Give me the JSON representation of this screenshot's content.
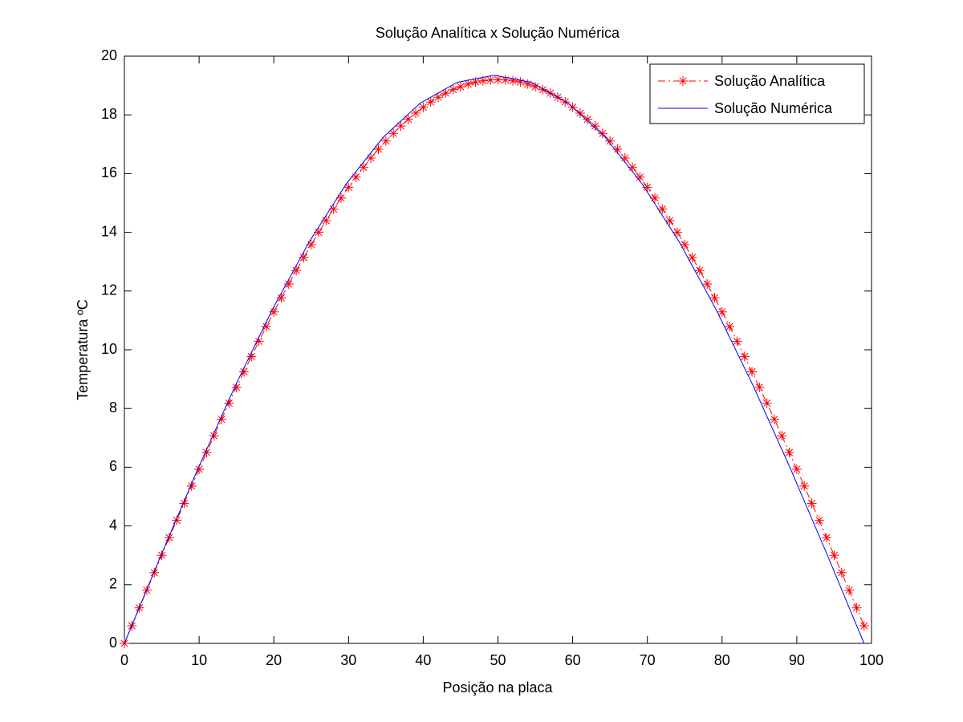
{
  "chart_data": {
    "type": "line",
    "title": "Solução Analítica x Solução Numérica",
    "xlabel": "Posição na placa",
    "ylabel": "Temperatura ºC",
    "xlim": [
      0,
      100
    ],
    "ylim": [
      0,
      20
    ],
    "xticks": [
      0,
      10,
      20,
      30,
      40,
      50,
      60,
      70,
      80,
      90,
      100
    ],
    "yticks": [
      0,
      2,
      4,
      6,
      8,
      10,
      12,
      14,
      16,
      18,
      20
    ],
    "grid": false,
    "legend": "northeast",
    "series": [
      {
        "name": "Solução Analítica",
        "color": "#ff0000",
        "linestyle": "dashdot",
        "marker": "asterisk",
        "x": [
          0,
          1,
          2,
          3,
          4,
          5,
          6,
          7,
          8,
          9,
          10,
          11,
          12,
          13,
          14,
          15,
          16,
          17,
          18,
          19,
          20,
          21,
          22,
          23,
          24,
          25,
          26,
          27,
          28,
          29,
          30,
          31,
          32,
          33,
          34,
          35,
          36,
          37,
          38,
          39,
          40,
          41,
          42,
          43,
          44,
          45,
          46,
          47,
          48,
          49,
          50,
          51,
          52,
          53,
          54,
          55,
          56,
          57,
          58,
          59,
          60,
          61,
          62,
          63,
          64,
          65,
          66,
          67,
          68,
          69,
          70,
          71,
          72,
          73,
          74,
          75,
          76,
          77,
          78,
          79,
          80,
          81,
          82,
          83,
          84,
          85,
          86,
          87,
          88,
          89,
          90,
          91,
          92,
          93,
          94,
          95,
          96,
          97,
          98,
          99
        ],
        "values": [
          0,
          0.6,
          1.21,
          1.81,
          2.41,
          3.0,
          3.6,
          4.19,
          4.77,
          5.36,
          5.93,
          6.5,
          7.07,
          7.63,
          8.18,
          8.72,
          9.25,
          9.77,
          10.29,
          10.79,
          11.29,
          11.77,
          12.24,
          12.7,
          13.14,
          13.58,
          14.0,
          14.4,
          14.79,
          15.17,
          15.53,
          15.88,
          16.21,
          16.53,
          16.83,
          17.11,
          17.37,
          17.62,
          17.85,
          18.06,
          18.26,
          18.44,
          18.6,
          18.74,
          18.86,
          18.96,
          19.05,
          19.12,
          19.16,
          19.19,
          19.2,
          19.19,
          19.16,
          19.12,
          19.05,
          18.96,
          18.86,
          18.74,
          18.6,
          18.44,
          18.26,
          18.06,
          17.85,
          17.62,
          17.37,
          17.11,
          16.83,
          16.53,
          16.21,
          15.88,
          15.53,
          15.17,
          14.79,
          14.4,
          14.0,
          13.58,
          13.14,
          12.7,
          12.24,
          11.77,
          11.29,
          10.79,
          10.29,
          9.77,
          9.25,
          8.72,
          8.18,
          7.63,
          7.07,
          6.5,
          5.93,
          5.36,
          4.77,
          4.19,
          3.6,
          3.0,
          2.41,
          1.81,
          1.21,
          0.6
        ]
      },
      {
        "name": "Solução Numérica",
        "color": "#0000ff",
        "linestyle": "solid",
        "x": [
          0,
          4.95,
          9.9,
          14.85,
          19.8,
          24.75,
          29.7,
          34.65,
          39.6,
          44.55,
          49.5,
          54.45,
          59.4,
          64.35,
          69.3,
          74.25,
          79.2,
          84.15,
          89.1,
          94.05,
          99
        ],
        "values": [
          0,
          3.03,
          5.98,
          8.78,
          11.37,
          13.68,
          15.65,
          17.24,
          18.4,
          19.11,
          19.35,
          19.11,
          18.4,
          17.24,
          15.65,
          13.68,
          11.37,
          8.78,
          5.98,
          3.03,
          0
        ]
      }
    ]
  }
}
